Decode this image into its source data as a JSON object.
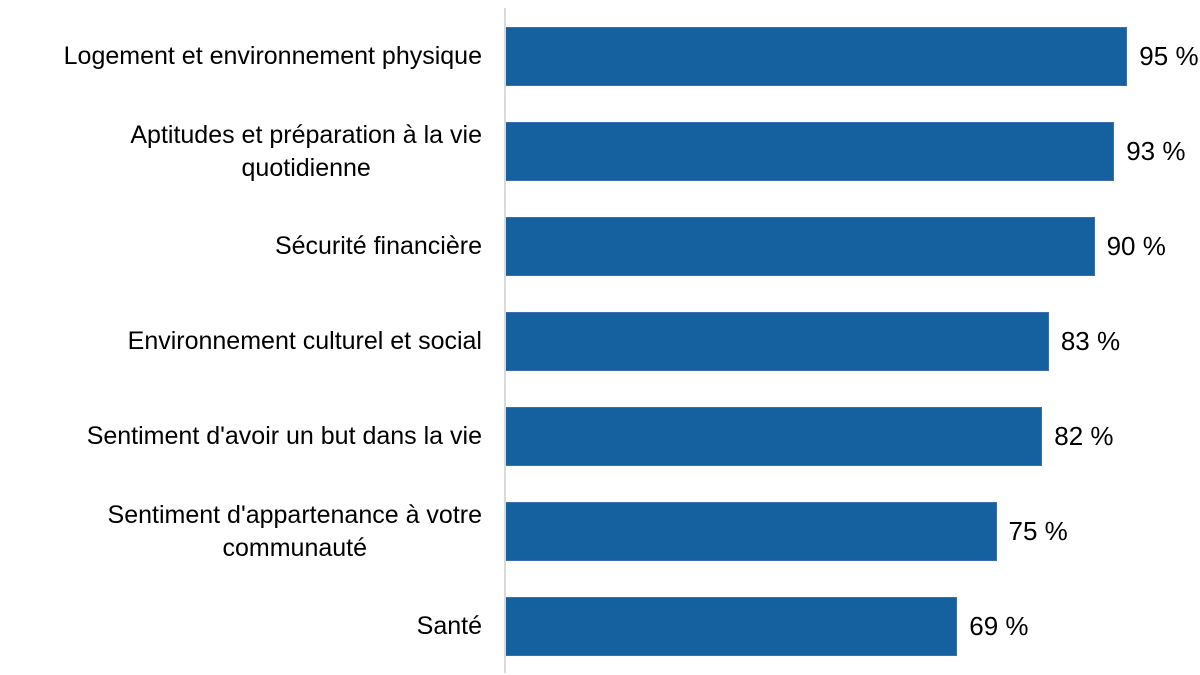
{
  "chart_data": {
    "type": "bar",
    "orientation": "horizontal",
    "title": "",
    "xlabel": "",
    "ylabel": "",
    "categories": [
      "Logement et environnement physique",
      "Aptitudes et préparation à la vie quotidienne",
      "Sécurité financière",
      "Environnement culturel et social",
      "Sentiment d'avoir un but dans la vie",
      "Sentiment d'appartenance à votre communauté",
      "Santé"
    ],
    "categories_display": [
      "Logement et environnement physique",
      "Aptitudes et préparation à la vie\nquotidienne",
      "Sécurité financière",
      "Environnement culturel et social",
      "Sentiment d'avoir un but dans la vie",
      "Sentiment d'appartenance à votre\ncommunauté",
      "Santé"
    ],
    "values": [
      95,
      93,
      90,
      83,
      82,
      75,
      69
    ],
    "value_labels": [
      "95 %",
      "93 %",
      "90 %",
      "83 %",
      "82 %",
      "75 %",
      "69 %"
    ],
    "unit": "%",
    "xlim": [
      0,
      100
    ],
    "grid": false,
    "legend": false,
    "axis_ticks_visible": false,
    "colors": {
      "bar_fill": "#15609E",
      "bar_border": "#3E6CB2",
      "axis_line": "#D9D9D9",
      "text": "#000000",
      "background": "#FFFFFF"
    }
  }
}
